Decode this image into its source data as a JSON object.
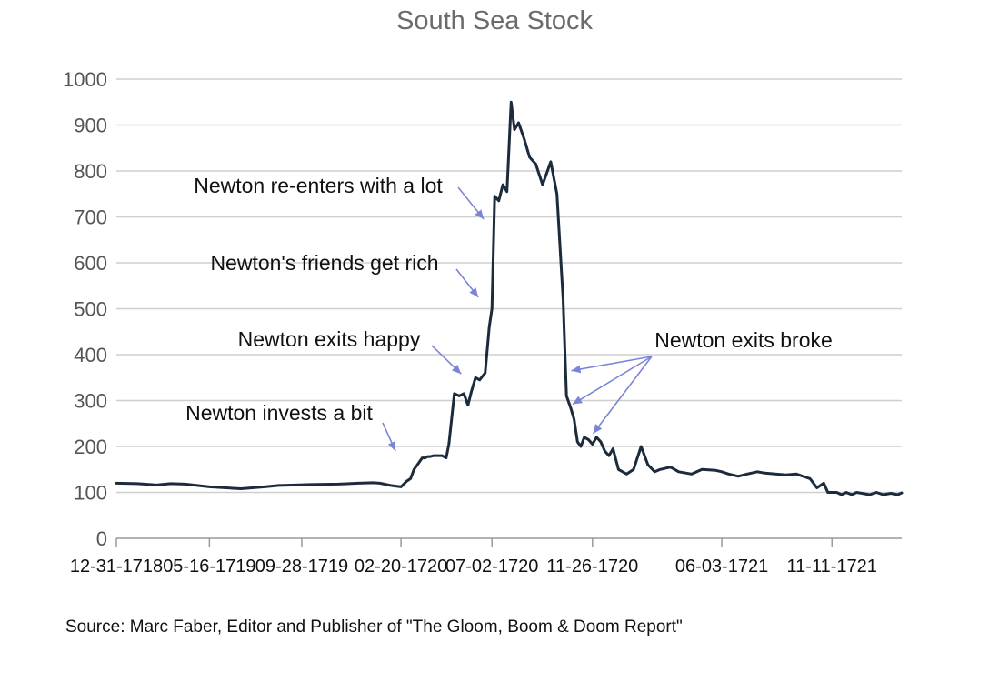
{
  "chart_data": {
    "type": "line",
    "title": "South Sea Stock",
    "xlabel": "",
    "ylabel": "",
    "ylim": [
      0,
      1000
    ],
    "yticks": [
      0,
      100,
      200,
      300,
      400,
      500,
      600,
      700,
      800,
      900,
      1000
    ],
    "xlim": [
      "1718-12-31",
      "1722-02-21"
    ],
    "xticks": [
      {
        "label": "12-31-1718",
        "date": "1718-12-31"
      },
      {
        "label": "05-16-1719",
        "date": "1719-05-16"
      },
      {
        "label": "09-28-1719",
        "date": "1719-09-28"
      },
      {
        "label": "02-20-1720",
        "date": "1720-02-20"
      },
      {
        "label": "07-02-1720",
        "date": "1720-07-02"
      },
      {
        "label": "11-26-1720",
        "date": "1720-11-26"
      },
      {
        "label": "06-03-1721",
        "date": "1721-06-03"
      },
      {
        "label": "11-11-1721",
        "date": "1721-11-11"
      }
    ],
    "grid": "horizontal",
    "series": [
      {
        "color": "#1c2b3c",
        "x": [
          "1718-12-31",
          "1719-01-31",
          "1719-02-28",
          "1719-03-20",
          "1719-04-10",
          "1719-05-16",
          "1719-07-01",
          "1719-08-05",
          "1719-08-25",
          "1719-09-20",
          "1719-10-10",
          "1719-11-20",
          "1719-12-20",
          "1720-01-10",
          "1720-01-20",
          "1720-02-05",
          "1720-02-15",
          "1720-02-20",
          "1720-02-28",
          "1720-03-05",
          "1720-03-10",
          "1720-03-15",
          "1720-03-22",
          "1720-03-26",
          "1720-03-30",
          "1720-04-03",
          "1720-04-08",
          "1720-04-14",
          "1720-04-20",
          "1720-04-26",
          "1720-04-30",
          "1720-05-08",
          "1720-05-15",
          "1720-05-22",
          "1720-05-28",
          "1720-06-02",
          "1720-06-08",
          "1720-06-14",
          "1720-06-22",
          "1720-06-28",
          "1720-07-02",
          "1720-07-06",
          "1720-07-12",
          "1720-07-18",
          "1720-07-24",
          "1720-07-30",
          "1720-08-04",
          "1720-08-10",
          "1720-08-18",
          "1720-08-26",
          "1720-09-04",
          "1720-09-14",
          "1720-09-26",
          "1720-10-05",
          "1720-10-14",
          "1720-10-19",
          "1720-10-25",
          "1720-10-30",
          "1720-11-04",
          "1720-11-09",
          "1720-11-14",
          "1720-11-20",
          "1720-11-26",
          "1720-12-02",
          "1720-12-08",
          "1720-12-14",
          "1720-12-20",
          "1720-12-26",
          "1721-01-03",
          "1721-01-15",
          "1721-01-25",
          "1721-02-05",
          "1721-02-15",
          "1721-02-25",
          "1721-03-05",
          "1721-03-20",
          "1721-04-01",
          "1721-04-20",
          "1721-05-05",
          "1721-05-25",
          "1721-06-03",
          "1721-06-13",
          "1721-06-27",
          "1721-07-10",
          "1721-07-25",
          "1721-08-05",
          "1721-08-20",
          "1721-09-05",
          "1721-09-20",
          "1721-10-10",
          "1721-10-20",
          "1721-10-30",
          "1721-11-05",
          "1721-11-11",
          "1721-11-18",
          "1721-11-25",
          "1721-12-02",
          "1721-12-10",
          "1721-12-17",
          "1721-12-25",
          "1722-01-05",
          "1722-01-15",
          "1722-01-25",
          "1722-02-05",
          "1722-02-15",
          "1722-02-21"
        ],
        "y": [
          120,
          119,
          116,
          119,
          118,
          112,
          108,
          112,
          115,
          116,
          117,
          118,
          120,
          121,
          120,
          115,
          113,
          112,
          124,
          130,
          150,
          160,
          175,
          175,
          178,
          178,
          180,
          180,
          180,
          175,
          205,
          315,
          310,
          315,
          290,
          320,
          350,
          345,
          360,
          460,
          500,
          745,
          735,
          770,
          755,
          950,
          890,
          905,
          870,
          830,
          815,
          770,
          820,
          750,
          520,
          310,
          285,
          260,
          210,
          200,
          220,
          215,
          205,
          220,
          210,
          190,
          180,
          195,
          150,
          140,
          150,
          200,
          160,
          145,
          150,
          155,
          145,
          140,
          150,
          148,
          145,
          140,
          135,
          140,
          145,
          142,
          140,
          138,
          140,
          130,
          110,
          120,
          100,
          100,
          100,
          95,
          100,
          95,
          100,
          98,
          95,
          100,
          95,
          98,
          95,
          99
        ]
      }
    ],
    "annotations": [
      {
        "text": "Newton re-enters with a lot",
        "target": [
          "1720-06-20",
          695
        ]
      },
      {
        "text": "Newton's friends get rich",
        "target": [
          "1720-06-12",
          525
        ]
      },
      {
        "text": "Newton exits happy",
        "target": [
          "1720-05-18",
          358
        ]
      },
      {
        "text": "Newton invests a bit",
        "target": [
          "1720-02-12",
          190
        ]
      },
      {
        "text": "Newton exits broke",
        "targets": [
          [
            "1720-10-26",
            365
          ],
          [
            "1720-10-28",
            292
          ],
          [
            "1720-11-27",
            228
          ]
        ]
      }
    ]
  },
  "source_text": "Source: Marc Faber, Editor and Publisher of \"The Gloom, Boom & Doom Report\""
}
